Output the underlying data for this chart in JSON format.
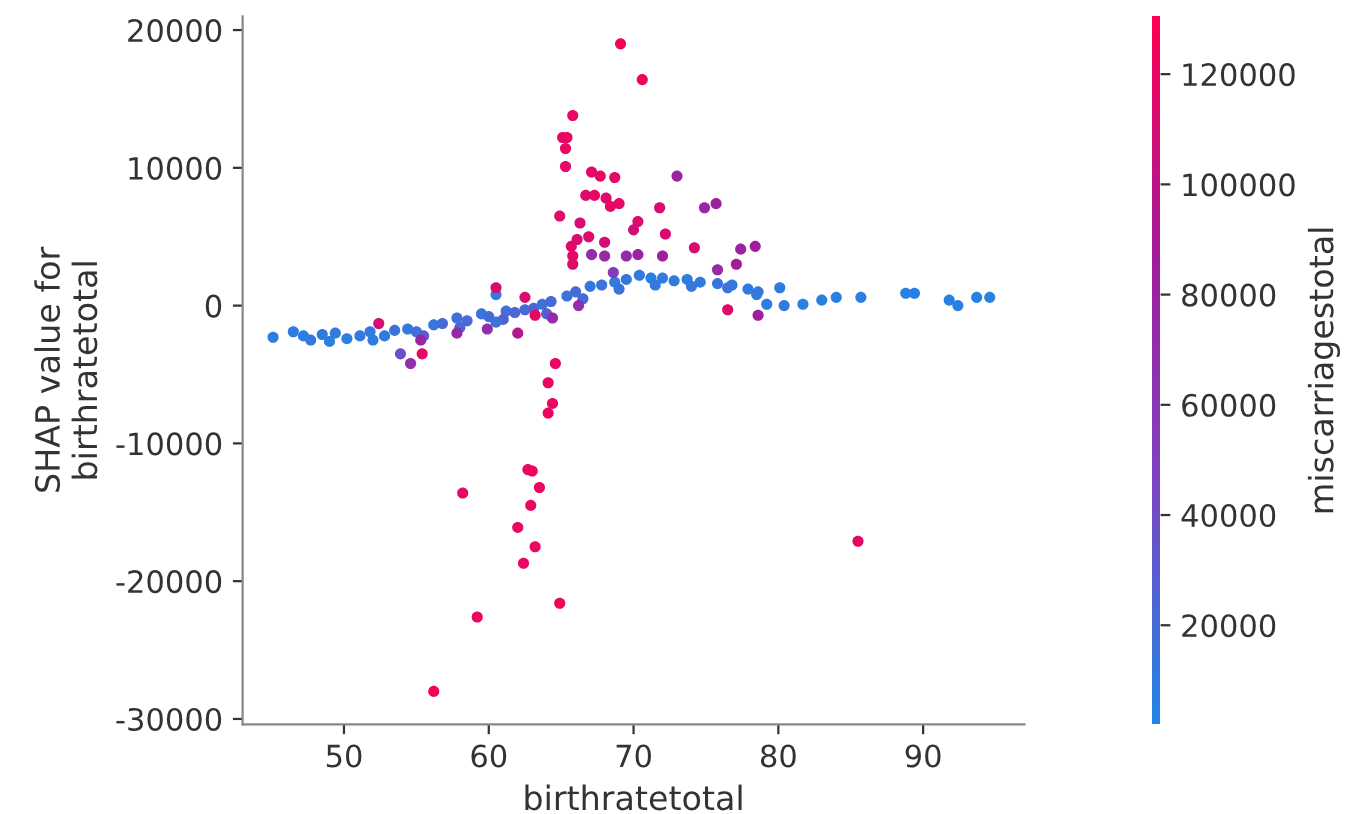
{
  "chart_data": {
    "type": "scatter",
    "xlabel": "birthratetotal",
    "ylabel": "SHAP value for\nbirthratetotal",
    "clabel": "miscarriagestotal",
    "xlim": [
      43,
      97
    ],
    "ylim": [
      -30400,
      21000
    ],
    "xticks": [
      50,
      60,
      70,
      80,
      90
    ],
    "yticks": [
      -30000,
      -20000,
      -10000,
      0,
      10000,
      20000
    ],
    "clim": [
      2000,
      130500
    ],
    "cticks": [
      20000,
      40000,
      60000,
      80000,
      100000,
      120000
    ],
    "marker": "circle",
    "grid": false,
    "legend": false,
    "series": [
      {
        "x": [
          45.1,
          46.5,
          47.2,
          47.7,
          48.5,
          49.4,
          50.2,
          51.1,
          51.8,
          52.8,
          53.5,
          54.4,
          55.0,
          56.2,
          56.8,
          57.8,
          58.5,
          59.5,
          60.0,
          60.5,
          61.2,
          61.8,
          62.5,
          63.1,
          63.7,
          64.3,
          65.4,
          66.0,
          67.0,
          67.8,
          68.7,
          69.5,
          70.4,
          71.2,
          72.0,
          72.8,
          73.7,
          74.6,
          75.8,
          76.8,
          77.9,
          78.6,
          79.2,
          80.1,
          80.4,
          81.7,
          83.0,
          84.0,
          85.7,
          88.8,
          89.4,
          91.8,
          92.4,
          93.7,
          94.6,
          53.9,
          49.0,
          52.0,
          55.5,
          58.0,
          61.0,
          64.0,
          66.5,
          69.0,
          71.5,
          74.0,
          76.5,
          78.5,
          60.5,
          69.1,
          70.6,
          65.8,
          65.1,
          65.4,
          65.3,
          65.3,
          67.1,
          67.7,
          68.7,
          66.7,
          67.3,
          68.1,
          69.0,
          68.4,
          71.8,
          64.9,
          66.3,
          70.3,
          70.0,
          66.1,
          66.9,
          72.2,
          68.0,
          65.7,
          65.8,
          65.8,
          74.2,
          76.5,
          60.5,
          62.5,
          63.2,
          52.4,
          55.4,
          64.6,
          64.1,
          64.4,
          64.1,
          62.7,
          63.0,
          63.5,
          58.2,
          62.9,
          62.0,
          63.2,
          62.4,
          64.9,
          59.2,
          56.2,
          85.5,
          73.0,
          74.9,
          75.7,
          78.4,
          77.4,
          77.1,
          75.8,
          72.0,
          67.1,
          68.0,
          69.5,
          70.3,
          68.6,
          78.6,
          54.6,
          57.8,
          59.9,
          62.0,
          64.4,
          66.2,
          55.3
        ],
        "values": [
          -2300,
          -1900,
          -2200,
          -2500,
          -2100,
          -2000,
          -2400,
          -2200,
          -1900,
          -2200,
          -1800,
          -1700,
          -1900,
          -1400,
          -1300,
          -900,
          -1100,
          -600,
          -800,
          800,
          -400,
          -500,
          -300,
          -200,
          100,
          300,
          700,
          1000,
          1400,
          1500,
          1700,
          1900,
          2200,
          2000,
          2000,
          1800,
          1900,
          1700,
          1600,
          1500,
          1200,
          1000,
          100,
          1300,
          0,
          100,
          400,
          600,
          600,
          900,
          900,
          400,
          0,
          600,
          600,
          -3500,
          -2600,
          -2500,
          -2200,
          -1600,
          -1000,
          -600,
          500,
          1200,
          1500,
          1400,
          1300,
          800,
          -1200,
          19000,
          16400,
          13800,
          12200,
          12200,
          11400,
          10100,
          9700,
          9400,
          9300,
          8000,
          8000,
          7800,
          7400,
          7200,
          7100,
          6500,
          6000,
          6100,
          5500,
          4800,
          5000,
          5200,
          4600,
          4300,
          3600,
          3000,
          4200,
          -300,
          1300,
          600,
          -700,
          -1300,
          -3500,
          -4200,
          -5600,
          -7100,
          -7800,
          -11900,
          -12000,
          -13200,
          -13600,
          -14500,
          -16100,
          -17500,
          -18700,
          -21600,
          -22600,
          -28000,
          -17100,
          9400,
          7100,
          7400,
          4300,
          4100,
          3000,
          2600,
          3600,
          3700,
          3600,
          3600,
          3700,
          2400,
          -700,
          -4200,
          -2000,
          -1700,
          -2000,
          -900,
          0,
          -2500
        ],
        "cvalues": [
          8000,
          10000,
          9000,
          12000,
          10000,
          11000,
          9000,
          12000,
          14000,
          10000,
          15000,
          12000,
          18000,
          14000,
          20000,
          16000,
          22000,
          15000,
          20000,
          12000,
          18000,
          24000,
          20000,
          26000,
          18000,
          22000,
          15000,
          20000,
          12000,
          16000,
          10000,
          14000,
          12000,
          9000,
          11000,
          13000,
          10000,
          12000,
          14000,
          11000,
          10000,
          12000,
          9000,
          10000,
          12000,
          8000,
          9000,
          7000,
          8000,
          6000,
          7000,
          6000,
          8000,
          6000,
          7000,
          40000,
          9000,
          11000,
          30000,
          25000,
          28000,
          30000,
          20000,
          15000,
          12000,
          14000,
          16000,
          12000,
          15000,
          125000,
          122000,
          120000,
          118000,
          121000,
          120000,
          119000,
          117000,
          120000,
          118000,
          116000,
          119000,
          115000,
          118000,
          120000,
          112000,
          117000,
          110000,
          114000,
          108000,
          112000,
          115000,
          113000,
          110000,
          116000,
          118000,
          115000,
          112000,
          115000,
          112000,
          115000,
          118000,
          110000,
          118000,
          120000,
          121000,
          119000,
          122000,
          120000,
          123000,
          121000,
          119000,
          120000,
          122000,
          121000,
          120000,
          124000,
          122000,
          125000,
          118000,
          80000,
          78000,
          82000,
          85000,
          80000,
          88000,
          75000,
          82000,
          70000,
          75000,
          72000,
          80000,
          55000,
          85000,
          70000,
          75000,
          68000,
          95000,
          72000,
          70000,
          78000
        ]
      }
    ]
  }
}
